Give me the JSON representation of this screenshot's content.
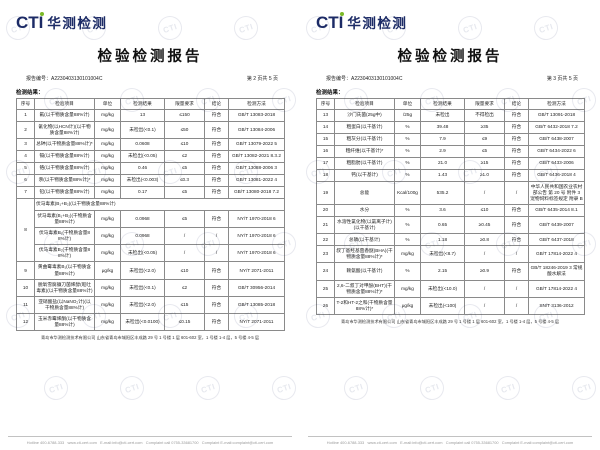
{
  "watermark": "CTI",
  "logo": {
    "cti": "CTI",
    "cn": "华测检测"
  },
  "header": {
    "title": "检验检测报告",
    "report_no_label": "报告编号：",
    "report_no": "A2230403130101004C",
    "results_label": "检测结果："
  },
  "footer": {
    "address": "青岛市华测检测技术有限公司 山东省青岛市城阳区丰成路 29 号 1 号楼 1 层 601-602 室，1 号楼 1-4 层，5 号楼 4-5 层",
    "contact": "Hotline 400-6788-333   www.cti-cert.com   E-mail:info@cti-cert.com   Complaint call 0755-33681700   Complaint E-mail:complaint@cti-cert.com"
  },
  "table_headers": [
    "序号",
    "检验项目",
    "单位",
    "检测结果",
    "限量要求",
    "结论",
    "检测方法"
  ],
  "pages": [
    {
      "page_indicator": "第 2 页共 5 页",
      "rows": [
        [
          "1",
          "氟(以干物质含量88%计)",
          "mg/kg",
          "13",
          "≤150",
          "符合",
          "GB/T 13083-2018"
        ],
        [
          "2",
          "氰化物(以HCN计)(以干物质含量88%计)",
          "mg/kg",
          "未检出(<0.1)",
          "≤50",
          "符合",
          "GB/T 13084-2006"
        ],
        [
          "3",
          "总砷(以干物质含量88%计)*",
          "mg/kg",
          "0.0608",
          "≤10",
          "符合",
          "GB/T 13079-2022 5"
        ],
        [
          "4",
          "镉(以干物质含量88%计)",
          "mg/kg",
          "未检出(<0.05)",
          "≤2",
          "符合",
          "GB/T 13082-2021 8.3.2"
        ],
        [
          "5",
          "铬(以干物质含量88%计)",
          "mg/kg",
          "0.46",
          "≤5",
          "符合",
          "GB/T 13088-2006 3"
        ],
        [
          "6",
          "汞(以干物质含量88%计)*",
          "mg/kg",
          "未检出(<0.003)",
          "≤0.3",
          "符合",
          "GB/T 13081-2022 4"
        ],
        [
          "7",
          "铅(以干物质含量88%计)",
          "mg/kg",
          "0.17",
          "≤5",
          "符合",
          "GB/T 13080-2018 7.2"
        ],
        [
          {
            "t": "8",
            "rs": 4
          },
          {
            "t": "伏马毒素(B₁+B₂)(以干物质含量88%计)",
            "cs": 6,
            "al": "left"
          }
        ],
        [
          "伏马毒素(B₁+B₂)(干物质含量88%计)",
          "mg/kg",
          "0.0968",
          "≤5",
          "符合",
          "NY/T 1970-2018 6"
        ],
        [
          "伏马毒素B₁(干物质含量88%计)",
          "mg/kg",
          "0.0968",
          "/",
          "/",
          "NY/T 1970-2018 6"
        ],
        [
          "伏马毒素B₂(干物质含量88%计)",
          "mg/kg",
          "未检出(<0.05)",
          "/",
          "/",
          "NY/T 1970-2018 6"
        ],
        [
          "9",
          "黄曲霉毒素B₁(以干物质含量88%计)",
          "μg/kg",
          "未检出(<2.0)",
          "≤10",
          "符合",
          "NY/T 2071-2011"
        ],
        [
          "10",
          "脱氧雪腐镰刀菌烯醇(呕吐毒素)(以干物质含量88%计)",
          "mg/kg",
          "未检出(<0.1)",
          "≤2",
          "符合",
          "GB/T 30956-2014"
        ],
        [
          "11",
          "亚硝酸盐(以NaNO₂计)(以干物质含量88%计)",
          "mg/kg",
          "未检出(<2.0)",
          "≤15",
          "符合",
          "GB/T 13085-2018"
        ],
        [
          "12",
          "玉米赤霉烯酮(以干物质含量88%计)",
          "mg/kg",
          "未检出(<0.0100)",
          "≤0.15",
          "符合",
          "NY/T 2071-2011"
        ]
      ]
    },
    {
      "page_indicator": "第 3 页共 5 页",
      "rows": [
        [
          "13",
          "沙门氏菌(25g中)",
          "/25g",
          "未检出",
          "不得检出",
          "符合",
          "GB/T 13091-2018"
        ],
        [
          "14",
          "粗蛋白(以干基计)",
          "%",
          "39.48",
          "≥35",
          "符合",
          "GB/T 6432-2018 7.2"
        ],
        [
          "15",
          "粗灰分(以干基计)",
          "%",
          "7.9",
          "≤9",
          "符合",
          "GB/T 6438-2007"
        ],
        [
          "16",
          "粗纤维(以干基计)*",
          "%",
          "2.9",
          "≤5",
          "符合",
          "GB/T 6434-2022 6"
        ],
        [
          "17",
          "粗脂肪(以干基计)",
          "%",
          "21.0",
          "≥15",
          "符合",
          "GB/T 6433-2006"
        ],
        [
          "18",
          "钙(以干基计)",
          "%",
          "1.43",
          "≥1.0",
          "符合",
          "GB/T 6436-2018 4"
        ],
        [
          "19",
          "总能",
          "Kcal/100g",
          "535.2",
          "/",
          "/",
          "中华人民共和国农业农村部公告 第 20 号 附件 3 宠物饲料标签规定 附录 B"
        ],
        [
          "20",
          "水分",
          "%",
          "3.6",
          "≤10",
          "符合",
          "GB/T 6435-2014 8.1"
        ],
        [
          "21",
          "水溶性氯化物(以氯离子计)(以干基计)",
          "%",
          "0.65",
          "≥0.45",
          "符合",
          "GB/T 6439-2007"
        ],
        [
          "22",
          "总磷(以干基计)",
          "%",
          "1.18",
          "≥0.8",
          "符合",
          "GB/T 6437-2018"
        ],
        [
          "23",
          "叔丁基羟基茴香醚(BHA)(干物质含量88%计)*",
          "mg/kg",
          "未检出(<8.7)",
          "/",
          "/",
          "GB/T 17814-2022 4"
        ],
        [
          "24",
          "赖氨酸(以干基计)",
          "%",
          "2.15",
          "≥0.9",
          "符合",
          "GB/T 18246-2019 3 常规酸水解法"
        ],
        [
          "25",
          "2,6-二叔丁对甲酚(BHT)(干物质含量88%计)*",
          "mg/kg",
          "未检出(<10.0)",
          "/",
          "/",
          "GB/T 17814-2022 4"
        ],
        [
          "26",
          "T-2和HT-2之和(干物质含量88%计)*",
          "μg/kg",
          "未检出(<100)",
          "/",
          "/",
          "SN/T 3136-2012"
        ]
      ]
    }
  ]
}
